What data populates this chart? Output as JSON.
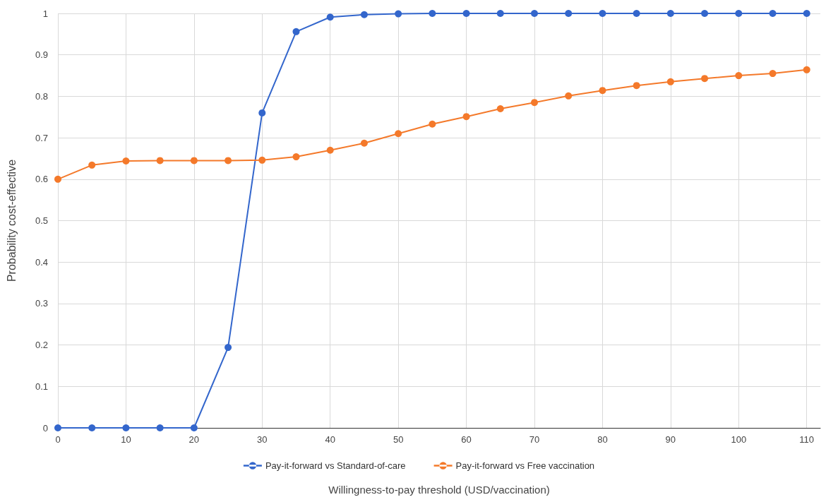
{
  "chart_data": {
    "type": "line",
    "xlabel": "Willingness-to-pay threshold (USD/vaccination)",
    "ylabel": "Probability cost-effective",
    "x": [
      0,
      5,
      10,
      15,
      20,
      25,
      30,
      35,
      40,
      45,
      50,
      55,
      60,
      65,
      70,
      75,
      80,
      85,
      90,
      95,
      100,
      105,
      110
    ],
    "series": [
      {
        "name": "Pay-it-forward vs Standard-of-care",
        "color": "#3366cc",
        "values": [
          0,
          0,
          0,
          0,
          0,
          0.194,
          0.76,
          0.956,
          0.991,
          0.997,
          0.999,
          1,
          1,
          1,
          1,
          1,
          1,
          1,
          1,
          1,
          1,
          1,
          1
        ]
      },
      {
        "name": "Pay-it-forward vs Free vaccination",
        "color": "#f4792a",
        "values": [
          0.6,
          0.634,
          0.644,
          0.645,
          0.645,
          0.645,
          0.646,
          0.654,
          0.67,
          0.687,
          0.71,
          0.733,
          0.751,
          0.77,
          0.785,
          0.801,
          0.814,
          0.826,
          0.835,
          0.843,
          0.85,
          0.855,
          0.864
        ]
      }
    ],
    "xlim": [
      0,
      112
    ],
    "xticks": [
      0,
      10,
      20,
      30,
      40,
      50,
      60,
      70,
      80,
      90,
      100,
      110
    ],
    "ylim": [
      0,
      1
    ],
    "yticks": [
      0,
      0.1,
      0.2,
      0.3,
      0.4,
      0.5,
      0.6,
      0.7,
      0.8,
      0.9,
      1
    ],
    "grid": true,
    "legend": "bottom",
    "marker": "circle",
    "line_style": "solid"
  }
}
